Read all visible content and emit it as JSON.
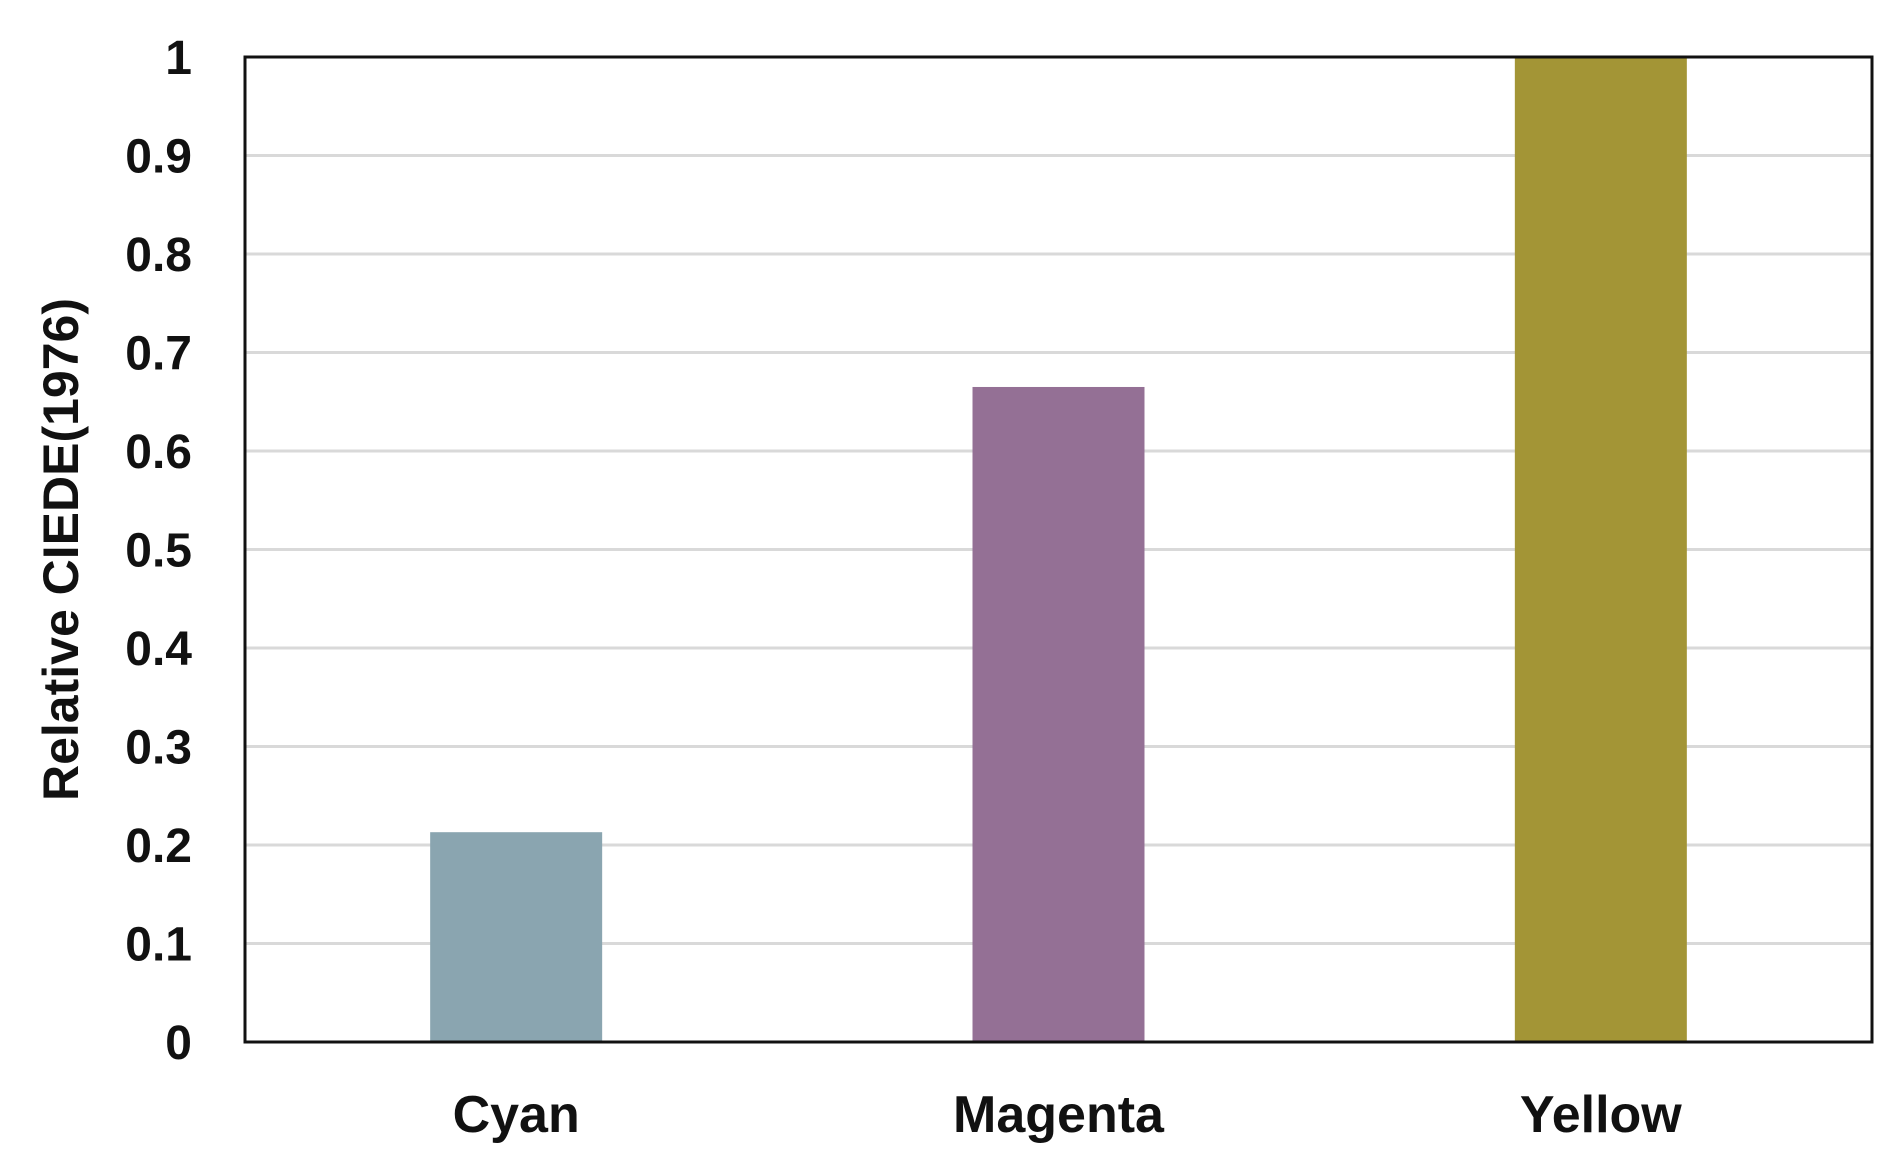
{
  "chart_data": {
    "type": "bar",
    "title": "",
    "xlabel": "",
    "ylabel": "Relative CIEDE(1976)",
    "categories": [
      "Cyan",
      "Magenta",
      "Yellow"
    ],
    "values": [
      0.213,
      0.665,
      1.0
    ],
    "colors": [
      "#8aa5b0",
      "#947095",
      "#a39536"
    ],
    "ylim": [
      0,
      1
    ],
    "yticks": [
      0,
      0.1,
      0.2,
      0.3,
      0.4,
      0.5,
      0.6,
      0.7,
      0.8,
      0.9,
      1
    ],
    "ytick_labels": [
      "0",
      "0.1",
      "0.2",
      "0.3",
      "0.4",
      "0.5",
      "0.6",
      "0.7",
      "0.8",
      "0.9",
      "1"
    ],
    "grid": true,
    "grid_color": "#d9d9d9",
    "legend": "none"
  }
}
